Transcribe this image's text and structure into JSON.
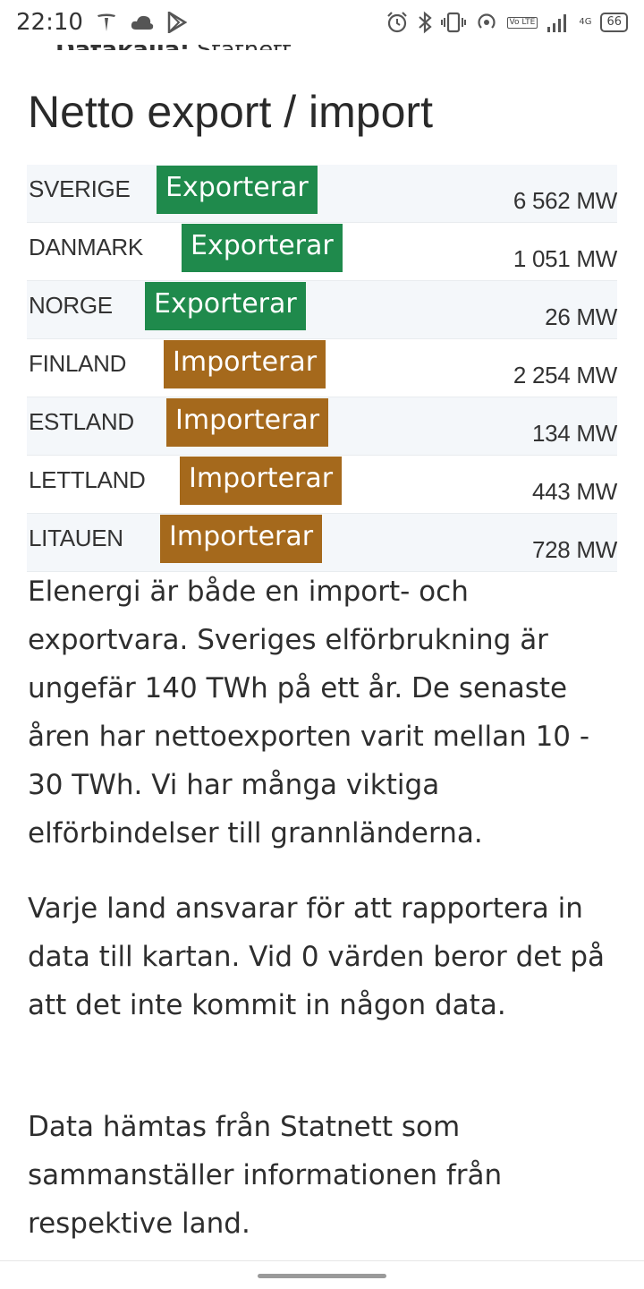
{
  "status_bar": {
    "time": "22:10",
    "lte_label": "Vo LTE",
    "signal_label": "4G",
    "battery": "66"
  },
  "source_cutoff": {
    "label": "Datakälla:",
    "value": "Statnett"
  },
  "section_title": "Netto export / import",
  "flows": [
    {
      "country": "SVERIGE",
      "status": "Exporterar",
      "value": "6 562 MW"
    },
    {
      "country": "DANMARK",
      "status": "Exporterar",
      "value": "1 051 MW"
    },
    {
      "country": "NORGE",
      "status": "Exporterar",
      "value": "26 MW"
    },
    {
      "country": "FINLAND",
      "status": "Importerar",
      "value": "2 254 MW"
    },
    {
      "country": "ESTLAND",
      "status": "Importerar",
      "value": "134 MW"
    },
    {
      "country": "LETTLAND",
      "status": "Importerar",
      "value": "443 MW"
    },
    {
      "country": "LITAUEN",
      "status": "Importerar",
      "value": "728 MW"
    }
  ],
  "colors": {
    "export": "#1f8a4c",
    "import": "#a5691c",
    "row_stripe": "#f4f7fa"
  },
  "paragraphs": [
    "Elenergi är både en import- och exportvara. Sveriges elförbrukning är ungefär 140 TWh på ett år. De senaste åren har nettoexporten varit mellan 10 - 30 TWh. Vi har många viktiga elförbindelser till grannländerna.",
    "Varje land ansvarar för att rapportera in data till kartan. Vid 0 värden beror det på att det inte kommit in någon data.",
    "Data hämtas från Statnett som sammanställer informationen från respektive land."
  ]
}
